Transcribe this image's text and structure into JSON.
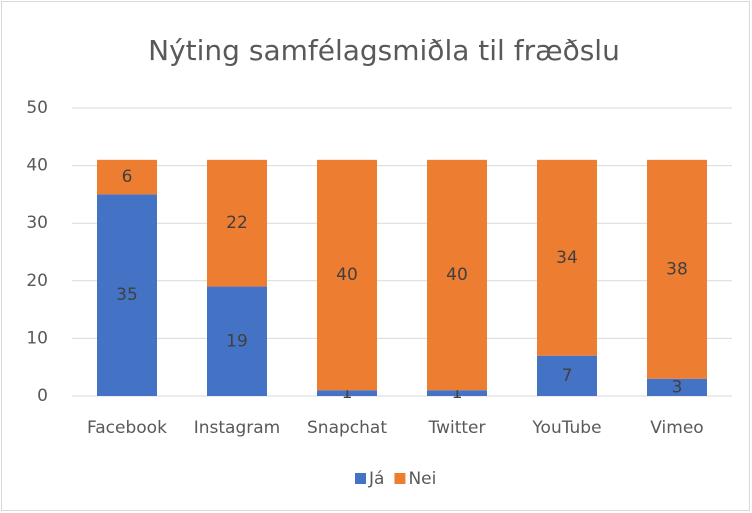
{
  "chart_data": {
    "type": "stacked_bar",
    "title": "Nýting samfélagsmiðla til fræðslu",
    "categories": [
      "Facebook",
      "Instagram",
      "Snapchat",
      "Twitter",
      "YouTube",
      "Vimeo"
    ],
    "series": [
      {
        "name": "Já",
        "color": "#4472c4",
        "values": [
          35,
          19,
          1,
          1,
          7,
          3
        ]
      },
      {
        "name": "Nei",
        "color": "#ed7d31",
        "values": [
          6,
          22,
          40,
          40,
          34,
          38
        ]
      }
    ],
    "ylim": [
      0,
      50
    ],
    "yticks": [
      0,
      10,
      20,
      30,
      40,
      50
    ],
    "grid": true,
    "legend": "bottom"
  }
}
